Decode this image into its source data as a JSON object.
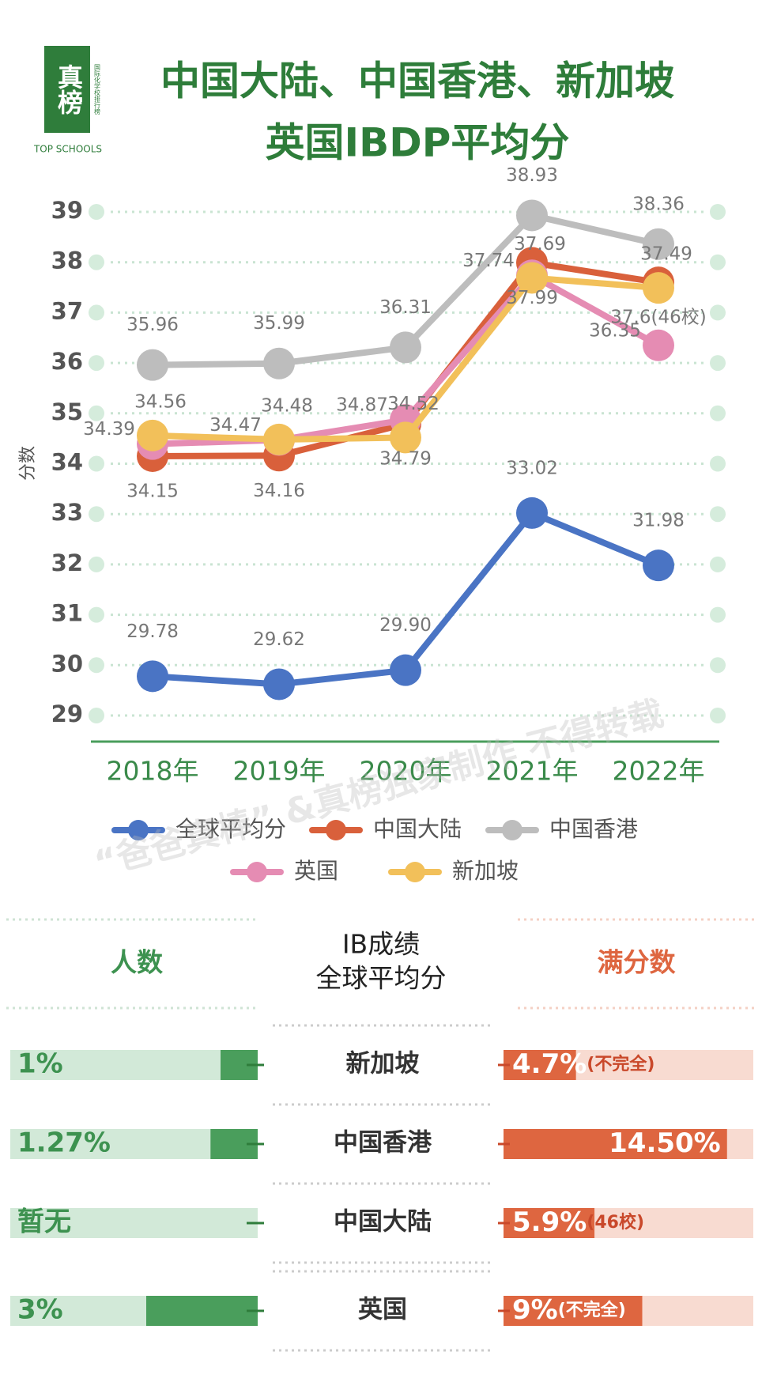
{
  "logo": {
    "mark": "真榜",
    "side": "国际化学校排行榜",
    "brand": "TOP SCHOOLS"
  },
  "watermark": "“爸爸真棒” &真榜独家制作 不得转载",
  "chart_data": {
    "type": "line",
    "title": [
      "中国大陆、中国香港、新加坡",
      "英国IBDP平均分"
    ],
    "y_label": "分数",
    "categories": [
      "2018年",
      "2019年",
      "2020年",
      "2021年",
      "2022年"
    ],
    "ylim": [
      29,
      39
    ],
    "yticks": [
      29,
      30,
      31,
      32,
      33,
      34,
      35,
      36,
      37,
      38,
      39
    ],
    "grid": true,
    "series": [
      {
        "name": "全球平均分",
        "color": "#4a74c4",
        "values": [
          29.78,
          29.62,
          29.9,
          33.02,
          31.98
        ],
        "value_labels": [
          "29.78",
          "29.62",
          "29.90",
          "33.02",
          "31.98"
        ]
      },
      {
        "name": "中国大陆",
        "color": "#d9603b",
        "values": [
          34.15,
          34.16,
          34.79,
          37.99,
          37.6
        ],
        "value_labels": [
          "34.15",
          "34.16",
          "34.79",
          "37.99",
          "37.6(46校)"
        ]
      },
      {
        "name": "中国香港",
        "color": "#bdbdbd",
        "values": [
          35.96,
          35.99,
          36.31,
          38.93,
          38.36
        ]
      },
      {
        "name": "英国",
        "color": "#e58cb3",
        "values": [
          34.39,
          34.47,
          34.87,
          37.74,
          36.35
        ]
      },
      {
        "name": "新加坡",
        "color": "#f2c05a",
        "values": [
          34.56,
          34.48,
          34.52,
          37.69,
          37.49
        ]
      }
    ]
  },
  "table": {
    "left_header": "人数",
    "center_header": [
      "IB成绩",
      "全球平均分"
    ],
    "right_header": "满分数",
    "rows": [
      {
        "region": "新加坡",
        "count": {
          "value": 1,
          "label": "1%"
        },
        "full": {
          "value": 4.7,
          "label": "4.7%"
        },
        "note": "(不完全)"
      },
      {
        "region": "中国香港",
        "count": {
          "value": 1.27,
          "label": "1.27%"
        },
        "full": {
          "value": 14.5,
          "label": "14.50%"
        }
      },
      {
        "region": "中国大陆",
        "count": {
          "value": null,
          "label": "暂无"
        },
        "full": {
          "value": 5.9,
          "label": "5.9%"
        },
        "note": "(46校)"
      },
      {
        "region": "英国",
        "count": {
          "value": 3,
          "label": "3%"
        },
        "full": {
          "value": 9,
          "label": "9%"
        },
        "note": "(不完全)"
      }
    ]
  }
}
